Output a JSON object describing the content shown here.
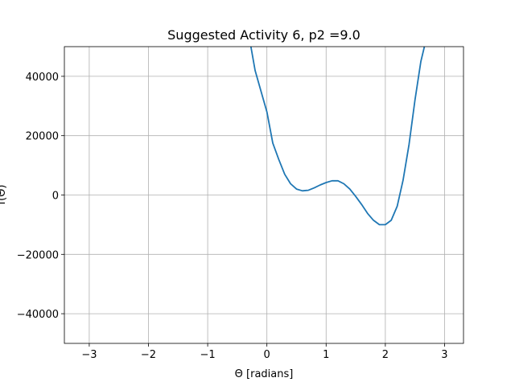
{
  "chart_data": {
    "type": "line",
    "title": "Suggested Activity 6, p2 =9.0",
    "xlabel": "Θ [radians]",
    "ylabel": "f(Θ)",
    "xlim": [
      -3.42,
      3.32
    ],
    "ylim": [
      -50000,
      50000
    ],
    "xticks": [
      -3,
      -2,
      -1,
      0,
      1,
      2,
      3
    ],
    "xtick_labels": [
      "−3",
      "−2",
      "−1",
      "0",
      "1",
      "2",
      "3"
    ],
    "yticks": [
      -40000,
      -20000,
      0,
      20000,
      40000
    ],
    "ytick_labels": [
      "−40000",
      "−20000",
      "0",
      "20000",
      "40000"
    ],
    "grid": true,
    "series": [
      {
        "color": "#1f77b4",
        "x": [
          -0.27,
          -0.2,
          -0.1,
          0.0,
          0.1,
          0.2,
          0.3,
          0.4,
          0.5,
          0.6,
          0.7,
          0.8,
          0.9,
          1.0,
          1.1,
          1.2,
          1.3,
          1.4,
          1.5,
          1.6,
          1.7,
          1.8,
          1.9,
          2.0,
          2.1,
          2.2,
          2.3,
          2.4,
          2.5,
          2.6,
          2.66
        ],
        "y": [
          50000,
          42000,
          35000,
          28000,
          17500,
          12000,
          7000,
          3800,
          2000,
          1400,
          1600,
          2400,
          3400,
          4200,
          4800,
          4800,
          3800,
          2000,
          -500,
          -3200,
          -6200,
          -8500,
          -10000,
          -10000,
          -8500,
          -3800,
          5000,
          17000,
          32000,
          45000,
          50000
        ]
      }
    ]
  }
}
